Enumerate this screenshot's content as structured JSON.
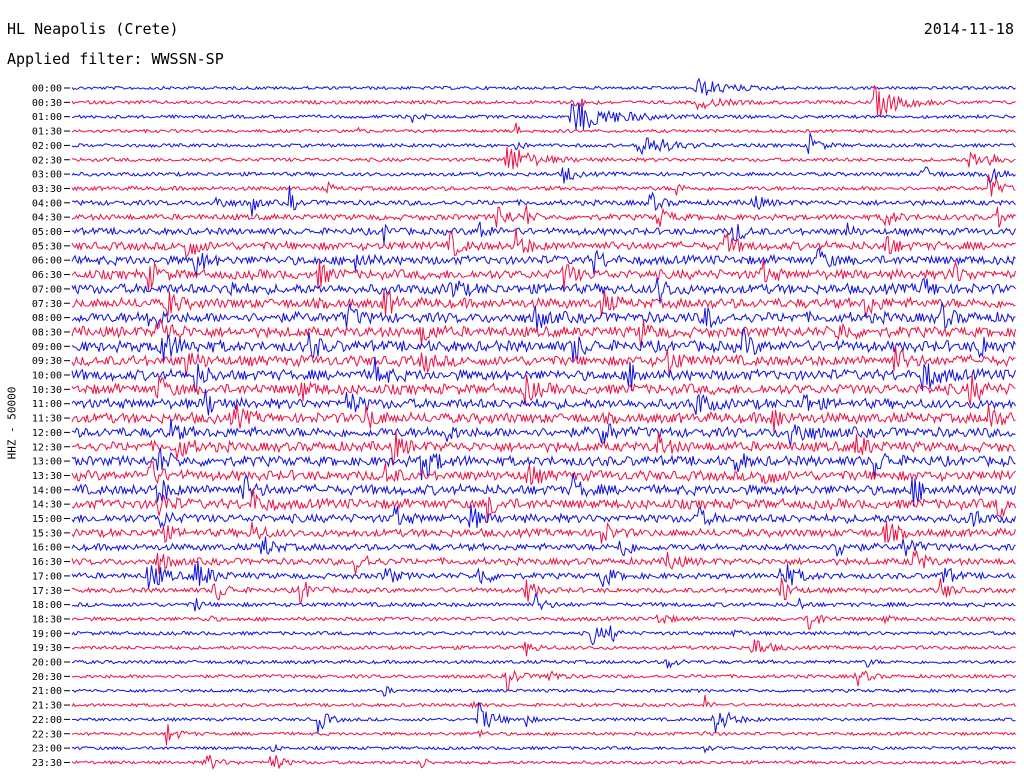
{
  "header": {
    "station": "HL Neapolis (Crete)",
    "date": "2014-11-18",
    "filter": "Applied filter: WWSSN-SP"
  },
  "chart_data": {
    "type": "line",
    "title": "HL Neapolis (Crete)",
    "date": "2014-11-18",
    "filter": "WWSSN-SP",
    "ylabel": "HHZ - 50000",
    "xlabel": "",
    "colors": [
      "#1010e0",
      "#ee1144"
    ],
    "grid": false,
    "rows": [
      {
        "label": "00:00",
        "activity": 0.05,
        "events": [
          [
            0.66,
            0.6,
            0.06
          ]
        ]
      },
      {
        "label": "00:30",
        "activity": 0.08,
        "events": [
          [
            0.53,
            0.5,
            0.02
          ],
          [
            0.66,
            0.4,
            0.05
          ],
          [
            0.85,
            1.0,
            0.05
          ]
        ]
      },
      {
        "label": "01:00",
        "activity": 0.07,
        "events": [
          [
            0.53,
            1.0,
            0.08
          ],
          [
            0.36,
            0.3,
            0.02
          ]
        ]
      },
      {
        "label": "01:30",
        "activity": 0.05,
        "events": [
          [
            0.3,
            0.4,
            0.01
          ],
          [
            0.47,
            0.5,
            0.01
          ]
        ]
      },
      {
        "label": "02:00",
        "activity": 0.08,
        "events": [
          [
            0.6,
            0.9,
            0.05
          ],
          [
            0.78,
            0.8,
            0.02
          ],
          [
            0.47,
            0.5,
            0.01
          ]
        ]
      },
      {
        "label": "02:30",
        "activity": 0.1,
        "events": [
          [
            0.46,
            1.0,
            0.05
          ],
          [
            0.95,
            0.8,
            0.02
          ],
          [
            0.97,
            0.6,
            0.02
          ]
        ]
      },
      {
        "label": "03:00",
        "activity": 0.12,
        "events": [
          [
            0.52,
            0.7,
            0.02
          ],
          [
            0.9,
            0.6,
            0.02
          ],
          [
            0.97,
            0.7,
            0.02
          ]
        ]
      },
      {
        "label": "03:30",
        "activity": 0.15,
        "events": [
          [
            0.27,
            0.4,
            0.01
          ],
          [
            0.64,
            0.5,
            0.01
          ],
          [
            0.97,
            1.0,
            0.02
          ]
        ]
      },
      {
        "label": "04:00",
        "activity": 0.25,
        "events": [
          [
            0.15,
            0.6,
            0.02
          ],
          [
            0.19,
            0.9,
            0.01
          ],
          [
            0.23,
            1.0,
            0.01
          ],
          [
            0.61,
            0.8,
            0.02
          ],
          [
            0.72,
            0.6,
            0.02
          ]
        ]
      },
      {
        "label": "04:30",
        "activity": 0.3,
        "events": [
          [
            0.45,
            1.0,
            0.02
          ],
          [
            0.48,
            0.8,
            0.01
          ],
          [
            0.62,
            0.7,
            0.02
          ],
          [
            0.86,
            0.7,
            0.02
          ],
          [
            0.98,
            0.9,
            0.01
          ]
        ]
      },
      {
        "label": "05:00",
        "activity": 0.4,
        "events": [
          [
            0.33,
            0.8,
            0.01
          ],
          [
            0.43,
            0.7,
            0.02
          ],
          [
            0.7,
            0.8,
            0.02
          ],
          [
            0.82,
            0.8,
            0.01
          ]
        ]
      },
      {
        "label": "05:30",
        "activity": 0.55,
        "events": [
          [
            0.12,
            1.0,
            0.02
          ],
          [
            0.4,
            0.8,
            0.02
          ],
          [
            0.47,
            0.9,
            0.02
          ],
          [
            0.69,
            0.9,
            0.02
          ],
          [
            0.86,
            0.8,
            0.02
          ]
        ]
      },
      {
        "label": "06:00",
        "activity": 0.6,
        "events": [
          [
            0.13,
            0.9,
            0.02
          ],
          [
            0.3,
            0.8,
            0.02
          ],
          [
            0.55,
            0.9,
            0.02
          ],
          [
            0.79,
            0.8,
            0.02
          ]
        ]
      },
      {
        "label": "06:30",
        "activity": 0.65,
        "events": [
          [
            0.08,
            0.9,
            0.02
          ],
          [
            0.26,
            0.8,
            0.02
          ],
          [
            0.52,
            0.9,
            0.02
          ],
          [
            0.73,
            0.8,
            0.02
          ],
          [
            0.93,
            0.9,
            0.02
          ]
        ]
      },
      {
        "label": "07:00",
        "activity": 0.7,
        "events": [
          [
            0.16,
            0.9,
            0.02
          ],
          [
            0.4,
            0.8,
            0.02
          ],
          [
            0.62,
            0.9,
            0.02
          ],
          [
            0.9,
            0.8,
            0.02
          ]
        ]
      },
      {
        "label": "07:30",
        "activity": 0.7,
        "events": [
          [
            0.1,
            0.9,
            0.02
          ],
          [
            0.33,
            0.9,
            0.02
          ],
          [
            0.56,
            0.8,
            0.02
          ],
          [
            0.84,
            0.9,
            0.02
          ]
        ]
      },
      {
        "label": "08:00",
        "activity": 0.75,
        "events": [
          [
            0.08,
            1.0,
            0.02
          ],
          [
            0.29,
            0.8,
            0.02
          ],
          [
            0.49,
            0.9,
            0.02
          ],
          [
            0.67,
            0.9,
            0.02
          ],
          [
            0.92,
            0.8,
            0.02
          ]
        ]
      },
      {
        "label": "08:30",
        "activity": 0.75,
        "events": [
          [
            0.09,
            0.9,
            0.03
          ],
          [
            0.37,
            0.8,
            0.02
          ],
          [
            0.6,
            0.9,
            0.02
          ],
          [
            0.81,
            0.8,
            0.02
          ]
        ]
      },
      {
        "label": "09:00",
        "activity": 0.8,
        "events": [
          [
            0.09,
            1.0,
            0.04
          ],
          [
            0.25,
            0.9,
            0.02
          ],
          [
            0.53,
            1.0,
            0.02
          ],
          [
            0.71,
            0.9,
            0.02
          ],
          [
            0.96,
            0.8,
            0.02
          ]
        ]
      },
      {
        "label": "09:30",
        "activity": 0.75,
        "events": [
          [
            0.12,
            0.9,
            0.02
          ],
          [
            0.37,
            0.8,
            0.02
          ],
          [
            0.63,
            0.9,
            0.02
          ],
          [
            0.87,
            0.9,
            0.02
          ]
        ]
      },
      {
        "label": "10:00",
        "activity": 0.75,
        "events": [
          [
            0.13,
            0.9,
            0.02
          ],
          [
            0.32,
            0.9,
            0.02
          ],
          [
            0.59,
            0.9,
            0.02
          ],
          [
            0.9,
            1.0,
            0.03
          ]
        ]
      },
      {
        "label": "10:30",
        "activity": 0.75,
        "events": [
          [
            0.09,
            0.9,
            0.02
          ],
          [
            0.24,
            0.8,
            0.02
          ],
          [
            0.48,
            0.9,
            0.02
          ],
          [
            0.95,
            1.0,
            0.02
          ]
        ]
      },
      {
        "label": "11:00",
        "activity": 0.7,
        "events": [
          [
            0.14,
            0.9,
            0.02
          ],
          [
            0.29,
            0.9,
            0.02
          ],
          [
            0.66,
            0.9,
            0.02
          ],
          [
            0.77,
            1.0,
            0.02
          ]
        ]
      },
      {
        "label": "11:30",
        "activity": 0.75,
        "events": [
          [
            0.17,
            0.9,
            0.02
          ],
          [
            0.31,
            0.9,
            0.02
          ],
          [
            0.74,
            1.0,
            0.02
          ],
          [
            0.97,
            0.9,
            0.02
          ]
        ]
      },
      {
        "label": "12:00",
        "activity": 0.7,
        "events": [
          [
            0.1,
            0.9,
            0.02
          ],
          [
            0.39,
            0.8,
            0.02
          ],
          [
            0.56,
            0.9,
            0.02
          ],
          [
            0.76,
            1.0,
            0.03
          ]
        ]
      },
      {
        "label": "12:30",
        "activity": 0.7,
        "events": [
          [
            0.11,
            0.9,
            0.02
          ],
          [
            0.34,
            0.9,
            0.02
          ],
          [
            0.62,
            0.8,
            0.02
          ],
          [
            0.83,
            0.9,
            0.02
          ]
        ]
      },
      {
        "label": "13:00",
        "activity": 0.7,
        "events": [
          [
            0.09,
            0.9,
            0.02
          ],
          [
            0.37,
            1.0,
            0.03
          ],
          [
            0.7,
            0.8,
            0.02
          ],
          [
            0.85,
            0.9,
            0.02
          ]
        ]
      },
      {
        "label": "13:30",
        "activity": 0.7,
        "events": [
          [
            0.08,
            1.0,
            0.02
          ],
          [
            0.33,
            0.8,
            0.02
          ],
          [
            0.48,
            0.9,
            0.02
          ],
          [
            0.73,
            0.9,
            0.02
          ]
        ]
      },
      {
        "label": "14:00",
        "activity": 0.7,
        "events": [
          [
            0.09,
            0.9,
            0.02
          ],
          [
            0.18,
            1.0,
            0.02
          ],
          [
            0.53,
            0.8,
            0.02
          ],
          [
            0.89,
            0.9,
            0.02
          ]
        ]
      },
      {
        "label": "14:30",
        "activity": 0.7,
        "events": [
          [
            0.09,
            1.0,
            0.02
          ],
          [
            0.19,
            0.9,
            0.02
          ],
          [
            0.44,
            0.8,
            0.02
          ],
          [
            0.98,
            0.9,
            0.02
          ]
        ]
      },
      {
        "label": "15:00",
        "activity": 0.55,
        "events": [
          [
            0.09,
            0.8,
            0.02
          ],
          [
            0.34,
            0.8,
            0.02
          ],
          [
            0.42,
            0.9,
            0.02
          ],
          [
            0.66,
            0.8,
            0.02
          ],
          [
            0.95,
            0.8,
            0.02
          ]
        ]
      },
      {
        "label": "15:30",
        "activity": 0.5,
        "events": [
          [
            0.09,
            0.9,
            0.02
          ],
          [
            0.19,
            0.7,
            0.02
          ],
          [
            0.56,
            0.8,
            0.02
          ],
          [
            0.86,
            0.9,
            0.02
          ]
        ]
      },
      {
        "label": "16:00",
        "activity": 0.4,
        "events": [
          [
            0.2,
            0.9,
            0.02
          ],
          [
            0.58,
            0.8,
            0.02
          ],
          [
            0.81,
            0.7,
            0.02
          ],
          [
            0.88,
            0.9,
            0.02
          ]
        ]
      },
      {
        "label": "16:30",
        "activity": 0.4,
        "events": [
          [
            0.09,
            0.8,
            0.02
          ],
          [
            0.3,
            0.9,
            0.02
          ],
          [
            0.63,
            0.8,
            0.02
          ],
          [
            0.89,
            1.0,
            0.02
          ]
        ]
      },
      {
        "label": "17:00",
        "activity": 0.3,
        "events": [
          [
            0.08,
            1.0,
            0.03
          ],
          [
            0.13,
            1.0,
            0.03
          ],
          [
            0.33,
            0.8,
            0.02
          ],
          [
            0.43,
            0.8,
            0.02
          ],
          [
            0.56,
            0.9,
            0.02
          ],
          [
            0.75,
            1.0,
            0.03
          ],
          [
            0.92,
            0.9,
            0.02
          ]
        ]
      },
      {
        "label": "17:30",
        "activity": 0.22,
        "events": [
          [
            0.15,
            1.0,
            0.02
          ],
          [
            0.24,
            0.9,
            0.02
          ],
          [
            0.48,
            0.8,
            0.02
          ],
          [
            0.75,
            0.9,
            0.02
          ],
          [
            0.92,
            0.7,
            0.02
          ]
        ]
      },
      {
        "label": "18:00",
        "activity": 0.15,
        "events": [
          [
            0.13,
            0.6,
            0.01
          ],
          [
            0.49,
            0.6,
            0.02
          ],
          [
            0.77,
            0.5,
            0.01
          ]
        ]
      },
      {
        "label": "18:30",
        "activity": 0.12,
        "events": [
          [
            0.14,
            0.5,
            0.01
          ],
          [
            0.62,
            0.5,
            0.02
          ],
          [
            0.78,
            0.9,
            0.02
          ],
          [
            0.86,
            0.5,
            0.01
          ]
        ]
      },
      {
        "label": "19:00",
        "activity": 0.1,
        "events": [
          [
            0.55,
            0.8,
            0.02
          ],
          [
            0.57,
            0.7,
            0.01
          ],
          [
            0.7,
            0.6,
            0.01
          ]
        ]
      },
      {
        "label": "19:30",
        "activity": 0.1,
        "events": [
          [
            0.48,
            0.5,
            0.02
          ],
          [
            0.72,
            0.7,
            0.03
          ]
        ]
      },
      {
        "label": "20:00",
        "activity": 0.08,
        "events": [
          [
            0.63,
            0.4,
            0.02
          ],
          [
            0.84,
            0.5,
            0.01
          ]
        ]
      },
      {
        "label": "20:30",
        "activity": 0.08,
        "events": [
          [
            0.46,
            0.9,
            0.02
          ],
          [
            0.5,
            0.7,
            0.02
          ],
          [
            0.83,
            0.7,
            0.02
          ]
        ]
      },
      {
        "label": "21:00",
        "activity": 0.05,
        "events": [
          [
            0.33,
            0.4,
            0.01
          ]
        ]
      },
      {
        "label": "21:30",
        "activity": 0.05,
        "events": [
          [
            0.42,
            0.6,
            0.01
          ],
          [
            0.67,
            0.6,
            0.01
          ]
        ]
      },
      {
        "label": "22:00",
        "activity": 0.05,
        "events": [
          [
            0.26,
            0.8,
            0.02
          ],
          [
            0.43,
            1.0,
            0.03
          ],
          [
            0.48,
            0.5,
            0.01
          ],
          [
            0.68,
            1.0,
            0.03
          ]
        ]
      },
      {
        "label": "22:30",
        "activity": 0.05,
        "events": [
          [
            0.1,
            0.7,
            0.02
          ],
          [
            0.43,
            0.4,
            0.01
          ],
          [
            0.67,
            0.4,
            0.01
          ]
        ]
      },
      {
        "label": "23:00",
        "activity": 0.04,
        "events": [
          [
            0.21,
            0.5,
            0.01
          ],
          [
            0.67,
            0.3,
            0.01
          ]
        ]
      },
      {
        "label": "23:30",
        "activity": 0.05,
        "events": [
          [
            0.14,
            0.8,
            0.02
          ],
          [
            0.21,
            0.8,
            0.02
          ],
          [
            0.37,
            0.5,
            0.01
          ]
        ]
      }
    ]
  }
}
